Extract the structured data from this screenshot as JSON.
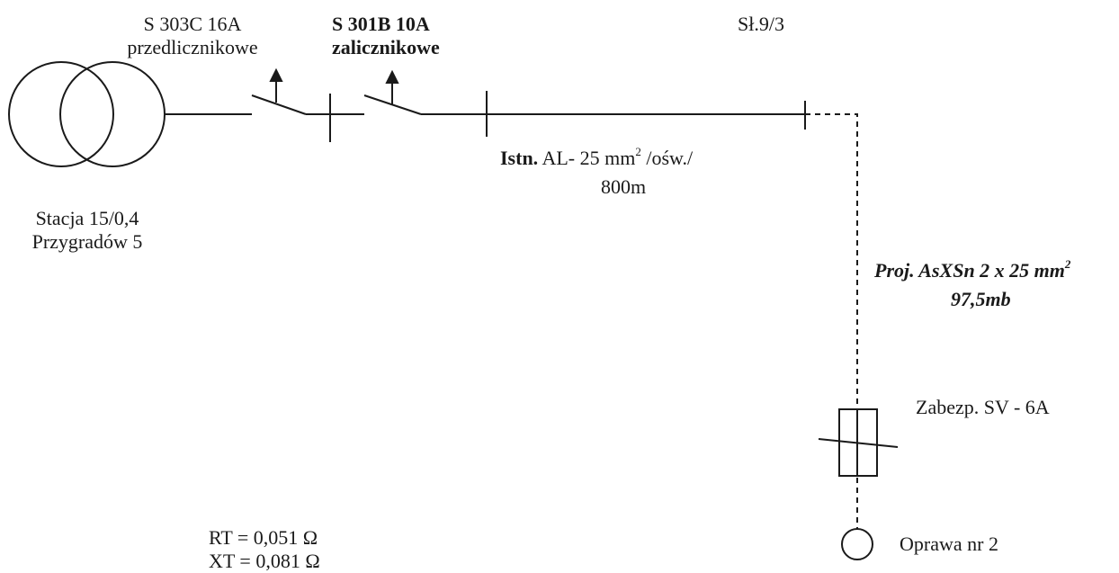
{
  "labels": {
    "breaker1_line1": "S 303C 16A",
    "breaker1_line2": "przedlicznikowe",
    "breaker2_line1": "S 301B 10A",
    "breaker2_line2": "zalicznikowe",
    "pole": "Sł.9/3",
    "cable_existing_prefix": "Istn.",
    "cable_existing_type": "AL- 25 mm",
    "cable_existing_sup": "2",
    "cable_existing_suffix": "/ośw./",
    "cable_existing_length": "800m",
    "station_line1": "Stacja 15/0,4",
    "station_line2": "Przygradów 5",
    "cable_proj_type": "Proj. AsXSn 2 x 25 mm",
    "cable_proj_sup": "2",
    "cable_proj_length": "97,5mb",
    "fuse": "Zabezp. SV -  6A",
    "fixture": "Oprawa nr 2",
    "rt": "RT = 0,051 Ω",
    "xt": "XT = 0,081 Ω"
  },
  "colors": {
    "line": "#1a1a1a",
    "background": "#ffffff"
  }
}
